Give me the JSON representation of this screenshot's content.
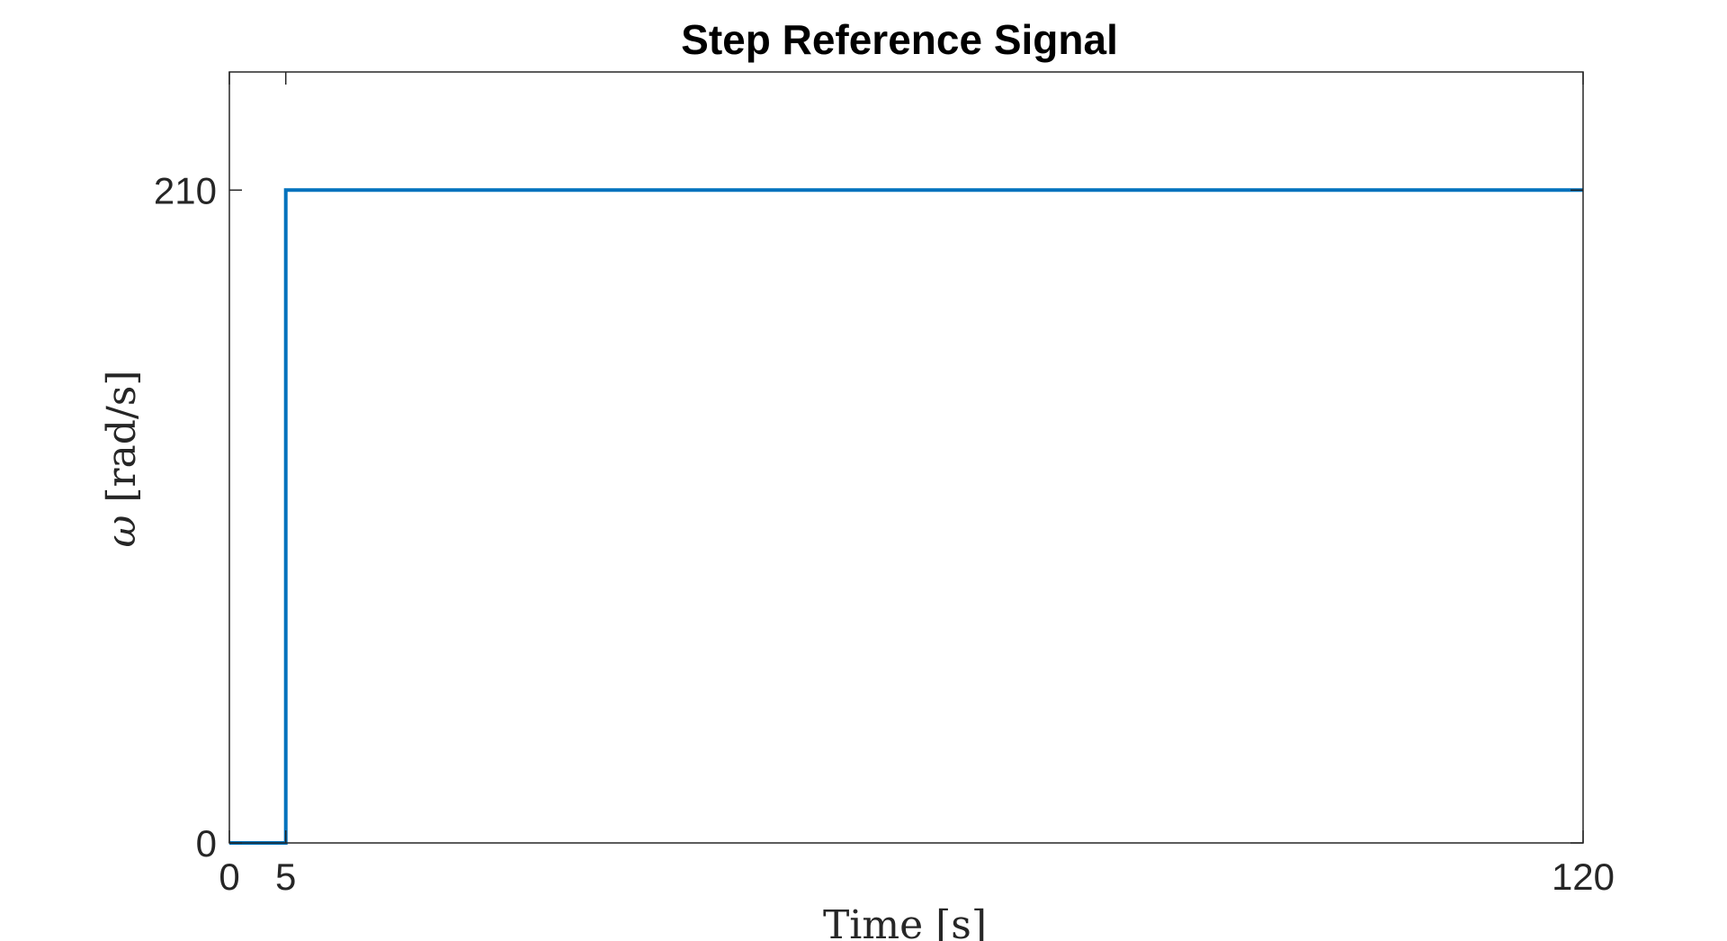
{
  "chart_data": {
    "type": "line",
    "title": "Step Reference Signal",
    "xlabel": "Time [s]",
    "ylabel_symbol": "ω",
    "ylabel_unit": "[rad/s]",
    "xlim": [
      0,
      120
    ],
    "ylim": [
      0,
      248
    ],
    "xticks": [
      0,
      5,
      120
    ],
    "xtick_labels": [
      "0",
      "5",
      "120"
    ],
    "yticks": [
      0,
      210
    ],
    "ytick_labels": [
      "0",
      "210"
    ],
    "grid": false,
    "series": [
      {
        "color": "#0072BD",
        "x": [
          0,
          5,
          5,
          120
        ],
        "y": [
          0,
          0,
          210,
          210
        ]
      }
    ]
  }
}
